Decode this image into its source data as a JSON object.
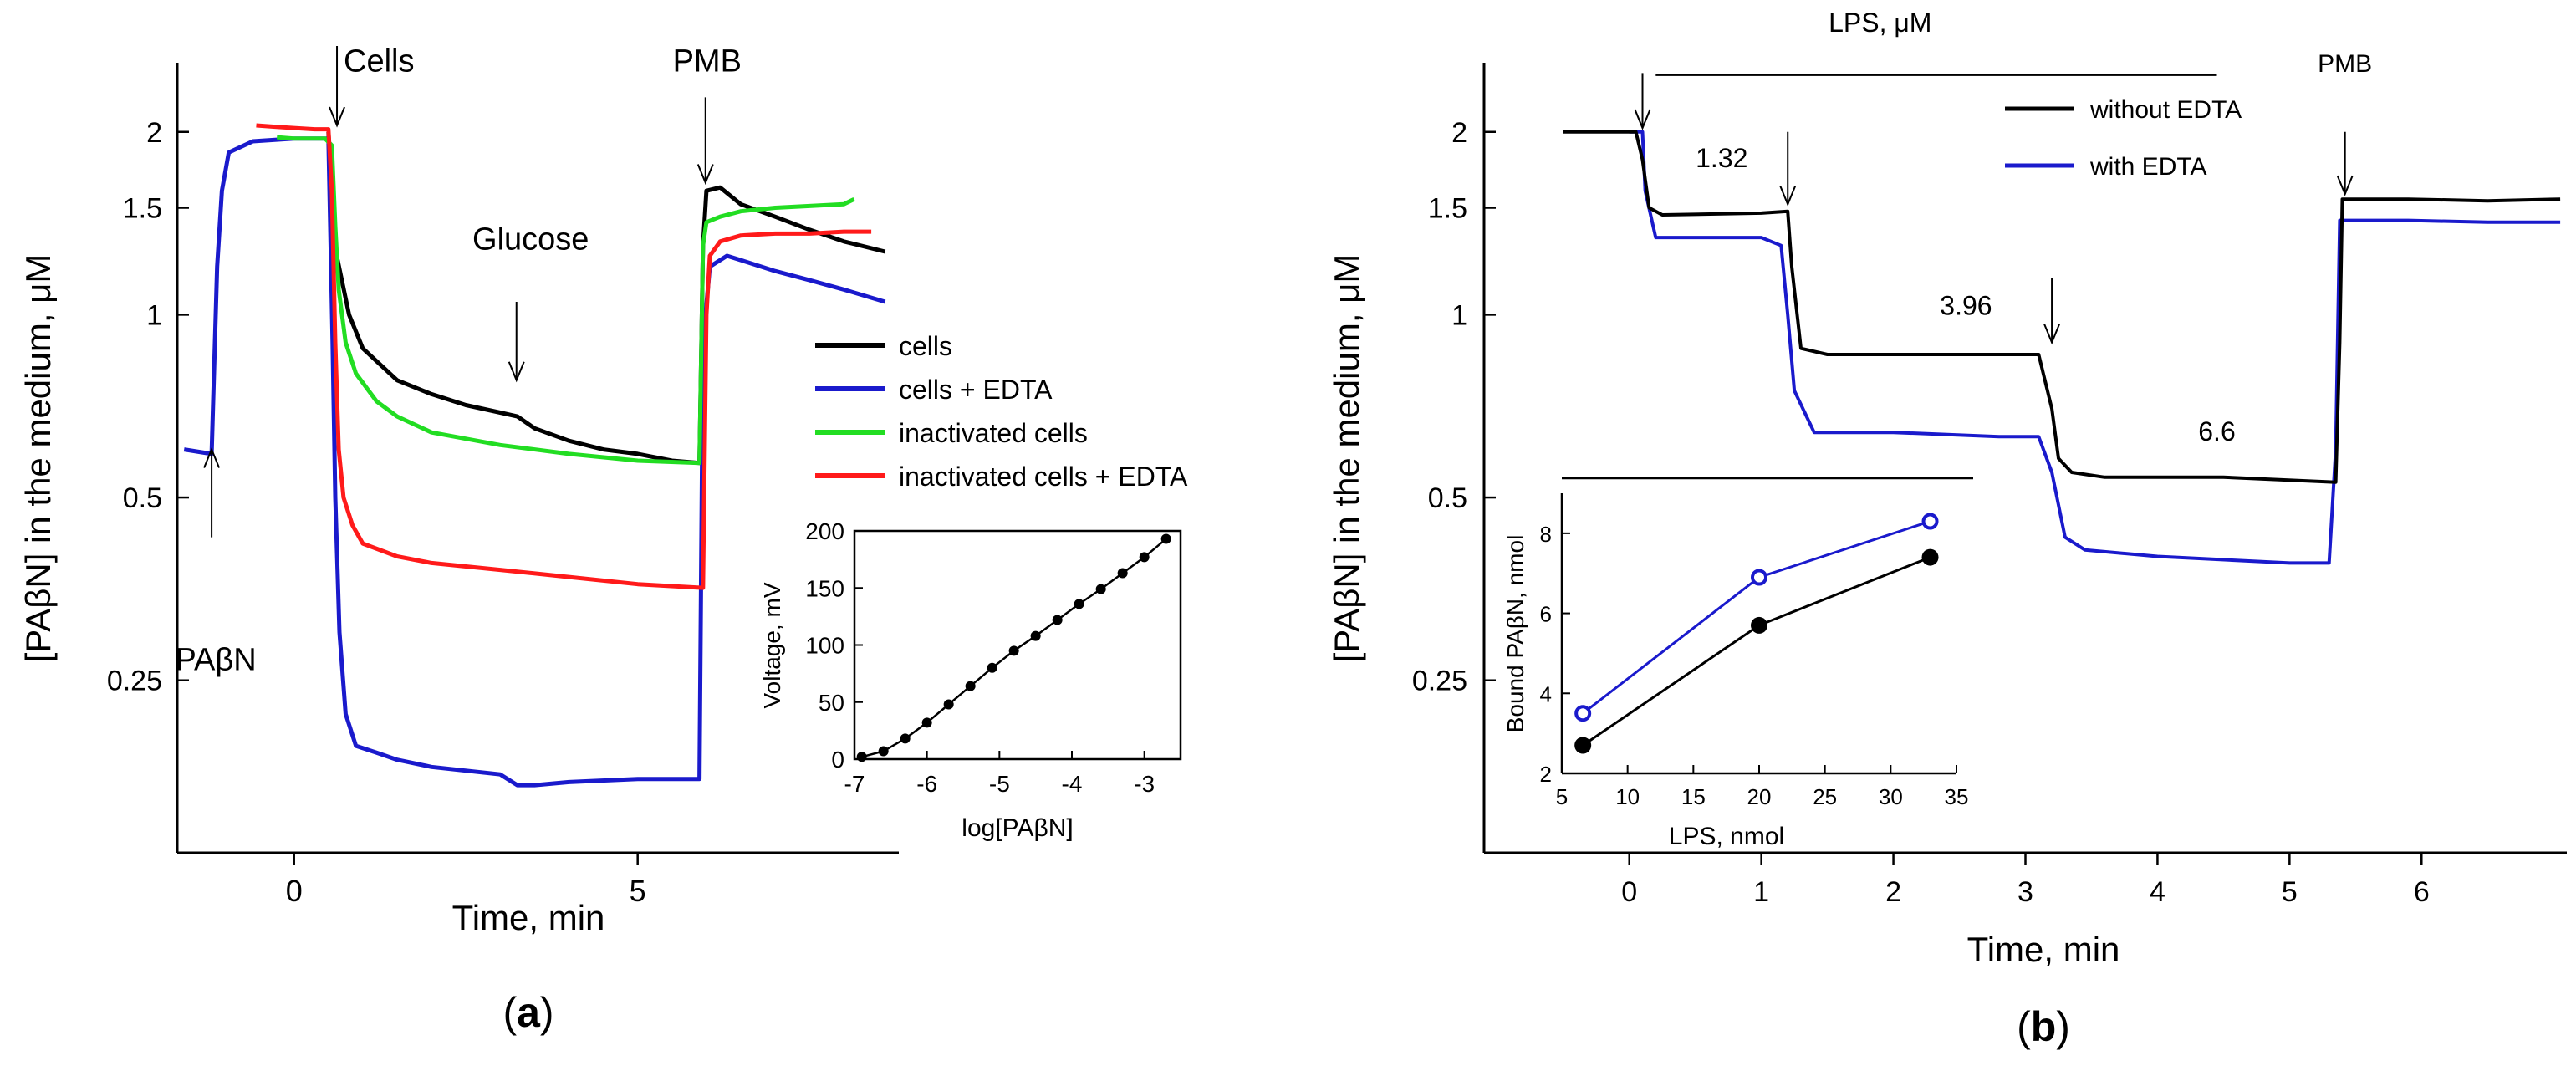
{
  "colors": {
    "black": "#000000",
    "blue": "#1a1acc",
    "green": "#22dd22",
    "red": "#ff1a1a"
  },
  "chart_data": [
    {
      "id": "a",
      "type": "line",
      "panel_label": "a",
      "xlabel": "Time, min",
      "ylabel": "[PAβN] in the medium, μM",
      "yscale": "log",
      "xlim": [
        -1.7,
        8.8
      ],
      "ylim": [
        0.13,
        2.6
      ],
      "xticks": [
        {
          "v": 0,
          "label": "0"
        },
        {
          "v": 5,
          "label": "5"
        }
      ],
      "yticks": [
        {
          "v": 2,
          "label": "2"
        },
        {
          "v": 1.5,
          "label": "1.5"
        },
        {
          "v": 1,
          "label": "1"
        },
        {
          "v": 0.5,
          "label": "0.5"
        },
        {
          "v": 0.25,
          "label": "0.25"
        }
      ],
      "series": [
        {
          "name": "cells",
          "color": "#000000",
          "x": [
            0.5,
            0.56,
            0.62,
            0.8,
            1.0,
            1.5,
            2.0,
            2.5,
            3.0,
            3.25,
            3.5,
            4.0,
            4.5,
            5.0,
            5.5,
            5.9,
            5.95,
            6.0,
            6.2,
            6.5,
            7.0,
            7.5,
            8.0,
            8.6
          ],
          "y": [
            2.0,
            1.5,
            1.25,
            1.0,
            0.88,
            0.78,
            0.74,
            0.71,
            0.69,
            0.68,
            0.65,
            0.62,
            0.6,
            0.59,
            0.575,
            0.57,
            1.3,
            1.6,
            1.62,
            1.52,
            1.45,
            1.38,
            1.32,
            1.27
          ]
        },
        {
          "name": "cells + EDTA",
          "color": "#1a1acc",
          "x": [
            -1.6,
            -1.2,
            -1.12,
            -1.05,
            -0.95,
            -0.6,
            0.0,
            0.5,
            0.56,
            0.6,
            0.66,
            0.75,
            0.9,
            1.2,
            1.5,
            2.0,
            3.0,
            3.25,
            3.5,
            4.0,
            5.0,
            5.9,
            5.95,
            6.05,
            6.3,
            6.6,
            7.0,
            7.5,
            8.0,
            8.6
          ],
          "y": [
            0.6,
            0.59,
            1.2,
            1.6,
            1.85,
            1.93,
            1.95,
            1.95,
            0.9,
            0.5,
            0.3,
            0.22,
            0.195,
            0.19,
            0.185,
            0.18,
            0.175,
            0.168,
            0.168,
            0.17,
            0.172,
            0.172,
            0.9,
            1.2,
            1.25,
            1.22,
            1.18,
            1.14,
            1.1,
            1.05
          ]
        },
        {
          "name": "inactivated cells",
          "color": "#22dd22",
          "x": [
            -0.25,
            0.0,
            0.45,
            0.55,
            0.6,
            0.65,
            0.75,
            0.9,
            1.2,
            1.5,
            2.0,
            3.0,
            4.0,
            5.0,
            5.9,
            5.95,
            6.0,
            6.2,
            6.5,
            7.0,
            7.5,
            8.0,
            8.15
          ],
          "y": [
            1.96,
            1.95,
            1.95,
            1.9,
            1.4,
            1.1,
            0.9,
            0.8,
            0.72,
            0.68,
            0.64,
            0.61,
            0.59,
            0.575,
            0.57,
            1.3,
            1.42,
            1.45,
            1.48,
            1.5,
            1.51,
            1.52,
            1.55
          ]
        },
        {
          "name": "inactivated cells + EDTA",
          "color": "#ff1a1a",
          "x": [
            -0.55,
            -0.3,
            0.0,
            0.3,
            0.5,
            0.55,
            0.6,
            0.65,
            0.72,
            0.85,
            1.0,
            1.5,
            2.0,
            3.0,
            4.0,
            5.0,
            5.95,
            6.0,
            6.05,
            6.2,
            6.5,
            7.0,
            7.5,
            8.0,
            8.4
          ],
          "y": [
            2.05,
            2.04,
            2.03,
            2.02,
            2.02,
            1.6,
            0.9,
            0.6,
            0.5,
            0.45,
            0.42,
            0.4,
            0.39,
            0.38,
            0.37,
            0.36,
            0.355,
            1.0,
            1.25,
            1.32,
            1.35,
            1.36,
            1.36,
            1.37,
            1.37
          ]
        }
      ],
      "annotations": [
        {
          "text": "PAβN",
          "x": -1.2,
          "y": 0.26,
          "arrow_from_y": 0.43,
          "arrow_to_y": 0.6
        },
        {
          "text": "Cells",
          "x": 0.6,
          "y": 2.45,
          "arrow_from_y": 2.45,
          "arrow_to_y": 2.05
        },
        {
          "text": "Glucose",
          "x": 3.2,
          "y": 1.28,
          "arrow_from_y": 1.05,
          "arrow_to_y": 0.78
        },
        {
          "text": "PMB",
          "x": 5.95,
          "y": 2.45,
          "arrow_from_y": 2.28,
          "arrow_to_y": 1.65
        }
      ],
      "legend": {
        "placement": "right",
        "entries": [
          "cells",
          "cells + EDTA",
          "inactivated cells",
          "inactivated cells + EDTA"
        ]
      }
    },
    {
      "id": "a_inset",
      "type": "line",
      "placement": "bottom-right inset of panel a",
      "xlabel": "log[PAβN]",
      "ylabel": "Voltage, mV",
      "xlim": [
        -7,
        -2.5
      ],
      "ylim": [
        0,
        200
      ],
      "xticks": [
        {
          "v": -7,
          "label": "-7"
        },
        {
          "v": -6,
          "label": "-6"
        },
        {
          "v": -5,
          "label": "-5"
        },
        {
          "v": -4,
          "label": "-4"
        },
        {
          "v": -3,
          "label": "-3"
        }
      ],
      "yticks": [
        {
          "v": 0,
          "label": "0"
        },
        {
          "v": 50,
          "label": "50"
        },
        {
          "v": 100,
          "label": "100"
        },
        {
          "v": 150,
          "label": "150"
        },
        {
          "v": 200,
          "label": "200"
        }
      ],
      "series": [
        {
          "name": "calibration",
          "color": "#000000",
          "x": [
            -6.9,
            -6.6,
            -6.3,
            -6.0,
            -5.7,
            -5.4,
            -5.1,
            -4.8,
            -4.5,
            -4.2,
            -3.9,
            -3.6,
            -3.3,
            -3.0,
            -2.7
          ],
          "y": [
            2,
            7,
            18,
            32,
            48,
            64,
            80,
            95,
            108,
            122,
            136,
            149,
            163,
            177,
            193
          ]
        }
      ]
    },
    {
      "id": "b",
      "type": "line",
      "panel_label": "b",
      "xlabel": "Time, min",
      "ylabel": "[PAβN] in the medium, μM",
      "yscale": "log",
      "xlim": [
        -1.1,
        7.1
      ],
      "ylim": [
        0.13,
        2.6
      ],
      "xticks": [
        {
          "v": 0,
          "label": "0"
        },
        {
          "v": 1,
          "label": "1"
        },
        {
          "v": 2,
          "label": "2"
        },
        {
          "v": 3,
          "label": "3"
        },
        {
          "v": 4,
          "label": "4"
        },
        {
          "v": 5,
          "label": "5"
        },
        {
          "v": 6,
          "label": "6"
        }
      ],
      "yticks": [
        {
          "v": 2,
          "label": "2"
        },
        {
          "v": 1.5,
          "label": "1.5"
        },
        {
          "v": 1,
          "label": "1"
        },
        {
          "v": 0.5,
          "label": "0.5"
        },
        {
          "v": 0.25,
          "label": "0.25"
        }
      ],
      "series": [
        {
          "name": "without EDTA",
          "color": "#000000",
          "x": [
            -0.5,
            0.05,
            0.1,
            0.15,
            0.25,
            1.0,
            1.2,
            1.23,
            1.3,
            1.5,
            2.5,
            3.1,
            3.2,
            3.25,
            3.35,
            3.6,
            4.5,
            5.35,
            5.38,
            5.4,
            5.9,
            6.5,
            7.05
          ],
          "y": [
            2.0,
            2.0,
            1.8,
            1.5,
            1.46,
            1.47,
            1.48,
            1.2,
            0.88,
            0.86,
            0.86,
            0.86,
            0.7,
            0.58,
            0.55,
            0.54,
            0.54,
            0.53,
            0.9,
            1.55,
            1.55,
            1.54,
            1.55
          ]
        },
        {
          "name": "with EDTA",
          "color": "#1a1acc",
          "x": [
            0.0,
            0.1,
            0.12,
            0.2,
            0.3,
            0.8,
            1.0,
            1.15,
            1.2,
            1.25,
            1.4,
            2.0,
            2.8,
            3.1,
            3.2,
            3.3,
            3.45,
            4.0,
            5.0,
            5.3,
            5.35,
            5.38,
            5.9,
            6.5,
            7.05
          ],
          "y": [
            2.0,
            2.0,
            1.6,
            1.34,
            1.34,
            1.34,
            1.34,
            1.3,
            1.0,
            0.75,
            0.64,
            0.64,
            0.63,
            0.63,
            0.55,
            0.43,
            0.41,
            0.4,
            0.39,
            0.39,
            0.6,
            1.43,
            1.43,
            1.42,
            1.42
          ]
        }
      ],
      "annotations": [
        {
          "text": "LPS, μM",
          "x": 1.9,
          "y": 2.62
        },
        {
          "text": "1.32",
          "x": 0.7,
          "y": 1.75
        },
        {
          "text": "3.96",
          "x": 2.55,
          "y": 1.0
        },
        {
          "text": "6.6",
          "x": 4.45,
          "y": 0.62
        },
        {
          "text": "PMB",
          "x": 5.42,
          "y": 2.3
        }
      ],
      "arrows": [
        {
          "x": 0.1,
          "y0": 2.5,
          "y1": 2.03
        },
        {
          "x": 1.2,
          "y0": 2.0,
          "y1": 1.52
        },
        {
          "x": 3.2,
          "y0": 1.15,
          "y1": 0.9
        },
        {
          "x": 5.42,
          "y0": 2.0,
          "y1": 1.58
        }
      ],
      "lps_bar": {
        "x0": 0.2,
        "x1": 4.45,
        "y": 2.48
      },
      "legend": {
        "placement": "top-right",
        "entries": [
          "without EDTA",
          "with EDTA"
        ]
      }
    },
    {
      "id": "b_inset",
      "type": "line",
      "placement": "bottom-left inset of panel b",
      "xlabel": "LPS, nmol",
      "ylabel": "Bound PAβN, nmol",
      "xlim": [
        5,
        35
      ],
      "ylim": [
        2,
        9
      ],
      "xticks": [
        {
          "v": 5,
          "label": "5"
        },
        {
          "v": 10,
          "label": "10"
        },
        {
          "v": 15,
          "label": "15"
        },
        {
          "v": 20,
          "label": "20"
        },
        {
          "v": 25,
          "label": "25"
        },
        {
          "v": 30,
          "label": "30"
        },
        {
          "v": 35,
          "label": "35"
        }
      ],
      "yticks": [
        {
          "v": 2,
          "label": "2"
        },
        {
          "v": 4,
          "label": "4"
        },
        {
          "v": 6,
          "label": "6"
        },
        {
          "v": 8,
          "label": "8"
        }
      ],
      "series": [
        {
          "name": "with EDTA",
          "color": "#1a1acc",
          "marker": "open-circle",
          "x": [
            6.6,
            20,
            33
          ],
          "y": [
            3.5,
            6.9,
            8.3
          ]
        },
        {
          "name": "without EDTA",
          "color": "#000000",
          "marker": "filled-circle",
          "x": [
            6.6,
            20,
            33
          ],
          "y": [
            2.7,
            5.7,
            7.4
          ]
        }
      ]
    }
  ]
}
